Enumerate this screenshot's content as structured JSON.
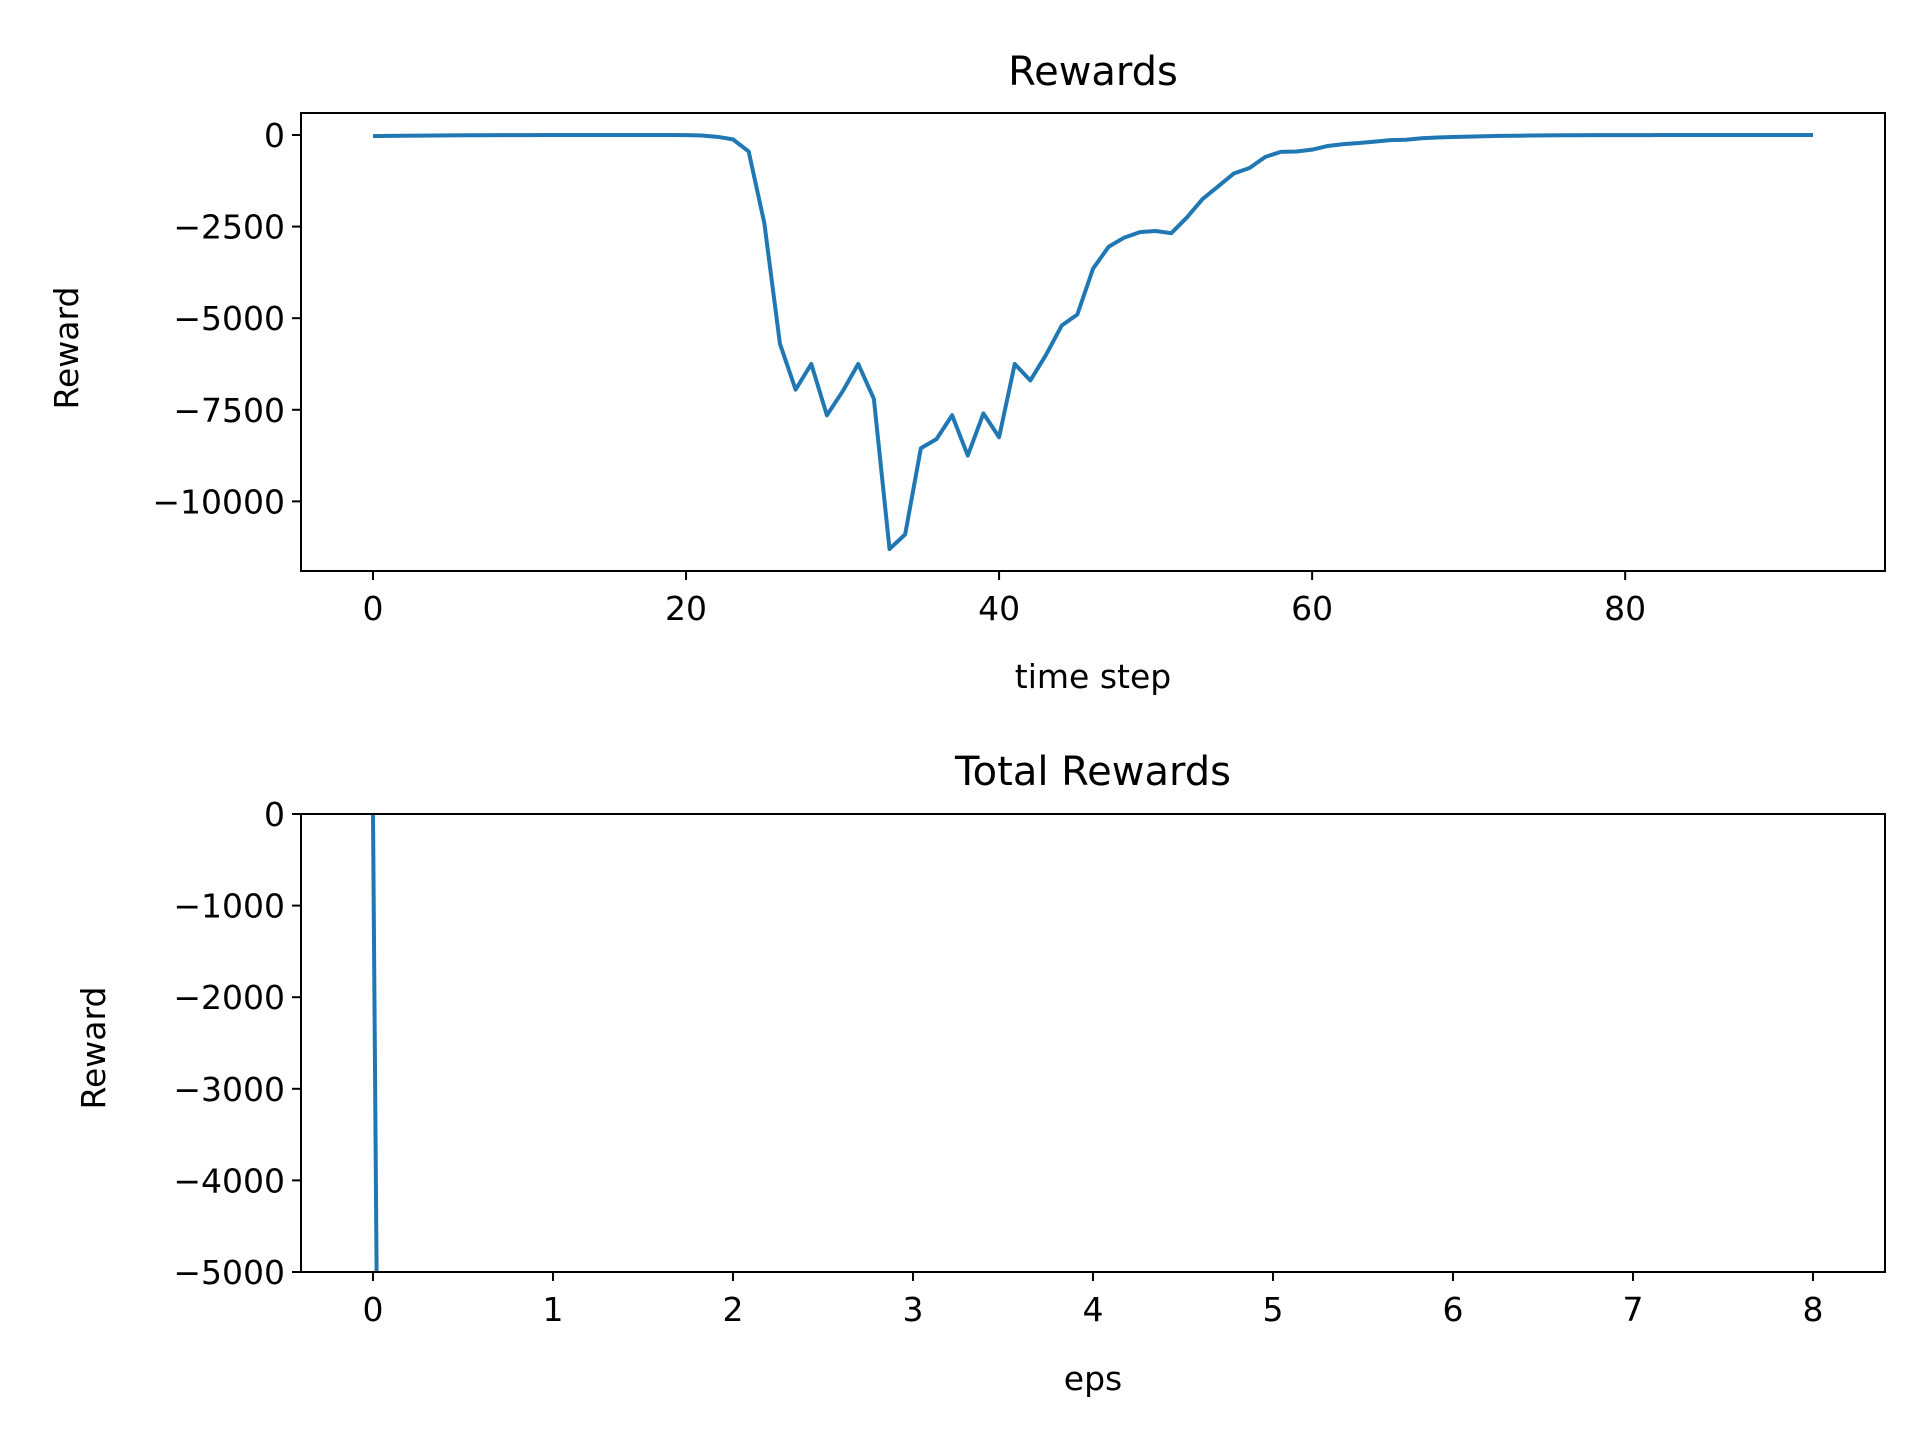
{
  "chart_data": [
    {
      "type": "line",
      "title": "Rewards",
      "xlabel": "time step",
      "ylabel": "Reward",
      "xlim": [
        -4.6,
        96.6
      ],
      "ylim": [
        -11900,
        600
      ],
      "xticks": [
        0,
        20,
        40,
        60,
        80
      ],
      "xtick_labels": [
        "0",
        "20",
        "40",
        "60",
        "80"
      ],
      "yticks": [
        0,
        -2500,
        -5000,
        -7500,
        -10000
      ],
      "ytick_labels": [
        "0",
        "−2500",
        "−5000",
        "−7500",
        "−10000"
      ],
      "grid": false,
      "color": "#1f77b4",
      "series": [
        {
          "x": [
            0,
            1,
            2,
            3,
            4,
            5,
            6,
            7,
            8,
            9,
            10,
            11,
            12,
            13,
            14,
            15,
            16,
            17,
            18,
            19,
            20,
            21,
            22,
            23,
            24,
            25,
            26,
            27,
            28,
            29,
            30,
            31,
            32,
            33,
            34,
            35,
            36,
            37,
            38,
            39,
            40,
            41,
            42,
            43,
            44,
            45,
            46,
            47,
            48,
            49,
            50,
            51,
            52,
            53,
            54,
            55,
            56,
            57,
            58,
            59,
            60,
            61,
            62,
            63,
            64,
            65,
            66,
            67,
            68,
            69,
            70,
            71,
            72,
            73,
            74,
            75,
            76,
            77,
            78,
            79,
            80,
            81,
            82,
            83,
            84,
            85,
            86,
            87,
            88,
            89,
            90,
            91,
            92
          ],
          "values": [
            -30,
            -25,
            -20,
            -16,
            -13,
            -10,
            -8,
            -6,
            -5,
            -4,
            -3,
            -2,
            -2,
            -2,
            -2,
            -2,
            -2,
            -2,
            -2,
            -2,
            -5,
            -15,
            -50,
            -120,
            -450,
            -2400,
            -5700,
            -6950,
            -6250,
            -7650,
            -7000,
            -6250,
            -7200,
            -11300,
            -10900,
            -8550,
            -8300,
            -7650,
            -8750,
            -7600,
            -8250,
            -6250,
            -6700,
            -6000,
            -5200,
            -4900,
            -3650,
            -3050,
            -2800,
            -2650,
            -2620,
            -2680,
            -2250,
            -1750,
            -1400,
            -1050,
            -900,
            -600,
            -460,
            -450,
            -400,
            -300,
            -250,
            -220,
            -180,
            -140,
            -130,
            -90,
            -70,
            -55,
            -45,
            -35,
            -25,
            -20,
            -15,
            -10,
            -8,
            -6,
            -5,
            -4,
            -3,
            -3,
            -2,
            -2,
            -2,
            -2,
            -2,
            -2,
            -2,
            -2,
            -2,
            -2,
            -2
          ]
        }
      ]
    },
    {
      "type": "line",
      "title": "Total Rewards",
      "xlabel": "eps",
      "ylabel": "Reward",
      "xlim": [
        -0.4,
        8.4
      ],
      "ylim": [
        -5000,
        0
      ],
      "xticks": [
        0,
        1,
        2,
        3,
        4,
        5,
        6,
        7,
        8
      ],
      "xtick_labels": [
        "0",
        "1",
        "2",
        "3",
        "4",
        "5",
        "6",
        "7",
        "8"
      ],
      "yticks": [
        0,
        -1000,
        -2000,
        -3000,
        -4000,
        -5000
      ],
      "ytick_labels": [
        "0",
        "−1000",
        "−2000",
        "−3000",
        "−4000",
        "−5000"
      ],
      "grid": false,
      "color": "#1f77b4",
      "series": [
        {
          "x": [
            0,
            0.02
          ],
          "values": [
            0,
            -5000
          ]
        }
      ]
    }
  ]
}
